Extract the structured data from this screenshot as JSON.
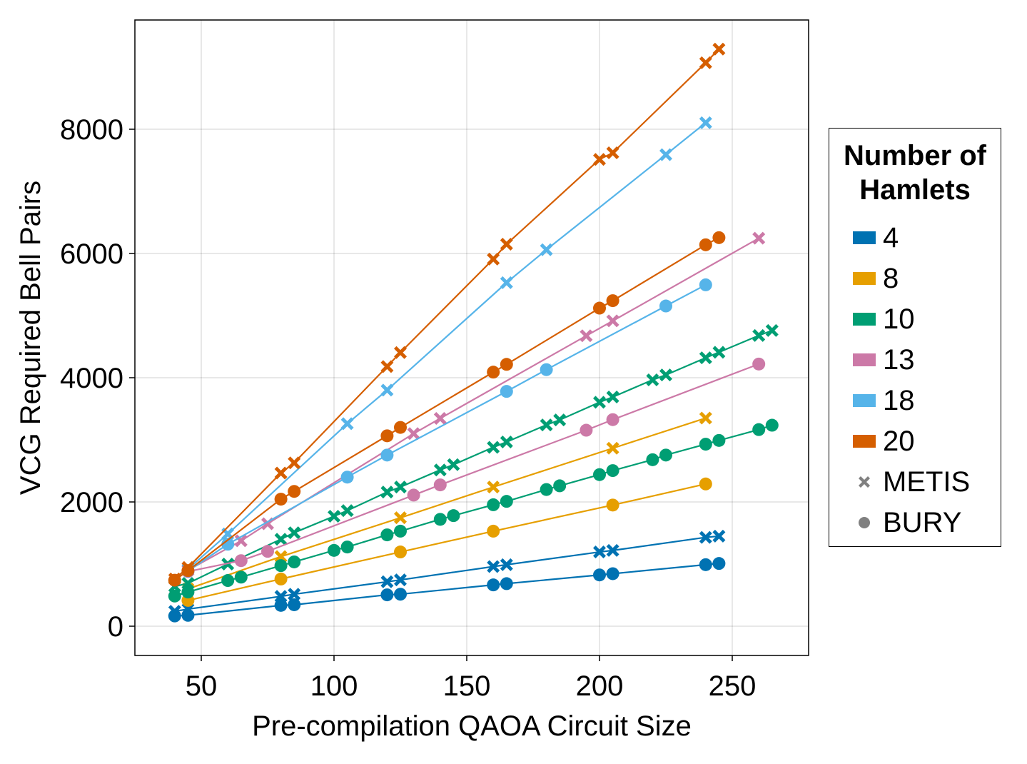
{
  "chart_data": {
    "type": "line",
    "title": "",
    "xlabel": "Pre-compilation QAOA Circuit Size",
    "ylabel": "VCG Required Bell Pairs",
    "xlim": [
      25,
      280
    ],
    "ylim": [
      -500,
      9800
    ],
    "xticks": [
      50,
      100,
      150,
      200,
      250
    ],
    "yticks": [
      0,
      2000,
      4000,
      6000,
      8000
    ],
    "xtick_labels": [
      "50",
      "100",
      "150",
      "200",
      "250"
    ],
    "ytick_labels": [
      "0",
      "2000",
      "4000",
      "6000",
      "8000"
    ],
    "grid": true,
    "legend": {
      "title": "Number of Hamlets",
      "title_lines": [
        "Number of",
        "Hamlets"
      ],
      "placement": "right",
      "color_entries": [
        {
          "label": "4",
          "color": "#0072b2"
        },
        {
          "label": "8",
          "color": "#e69f00"
        },
        {
          "label": "10",
          "color": "#009e73"
        },
        {
          "label": "13",
          "color": "#cc79a7"
        },
        {
          "label": "18",
          "color": "#56b4e9"
        },
        {
          "label": "20",
          "color": "#d55e00"
        }
      ],
      "marker_entries": [
        {
          "label": "METIS",
          "marker": "x-icon"
        },
        {
          "label": "BURY",
          "marker": "circle-icon"
        }
      ],
      "marker_color": "#808080"
    },
    "series": [
      {
        "name": "4 METIS",
        "hamlets": "4",
        "method": "METIS",
        "color": "#0072b2",
        "marker": "x",
        "x": [
          40,
          45,
          80,
          85,
          120,
          125,
          160,
          165,
          200,
          205,
          240,
          245
        ],
        "y": [
          240,
          275,
          480,
          515,
          715,
          745,
          960,
          990,
          1195,
          1220,
          1430,
          1450
        ]
      },
      {
        "name": "4 BURY",
        "hamlets": "4",
        "method": "BURY",
        "color": "#0072b2",
        "marker": "circle",
        "x": [
          40,
          45,
          80,
          85,
          120,
          125,
          160,
          165,
          200,
          205,
          240,
          245
        ],
        "y": [
          165,
          175,
          335,
          345,
          505,
          515,
          665,
          685,
          825,
          845,
          990,
          1010
        ]
      },
      {
        "name": "8 METIS",
        "hamlets": "8",
        "method": "METIS",
        "color": "#e69f00",
        "marker": "x",
        "x": [
          45,
          80,
          125,
          160,
          205,
          240
        ],
        "y": [
          600,
          1120,
          1745,
          2240,
          2865,
          3350
        ]
      },
      {
        "name": "8 BURY",
        "hamlets": "8",
        "method": "BURY",
        "color": "#e69f00",
        "marker": "circle",
        "x": [
          45,
          80,
          125,
          160,
          205,
          240
        ],
        "y": [
          415,
          760,
          1195,
          1530,
          1950,
          2290
        ]
      },
      {
        "name": "10 METIS",
        "hamlets": "10",
        "method": "METIS",
        "color": "#009e73",
        "marker": "x",
        "x": [
          40,
          45,
          60,
          80,
          85,
          100,
          105,
          120,
          125,
          140,
          145,
          160,
          165,
          180,
          185,
          200,
          205,
          220,
          225,
          240,
          245,
          260,
          265
        ],
        "y": [
          640,
          690,
          1000,
          1400,
          1505,
          1770,
          1860,
          2160,
          2240,
          2515,
          2600,
          2880,
          2965,
          3240,
          3320,
          3605,
          3690,
          3965,
          4045,
          4320,
          4410,
          4680,
          4760
        ]
      },
      {
        "name": "10 BURY",
        "hamlets": "10",
        "method": "BURY",
        "color": "#009e73",
        "marker": "circle",
        "x": [
          40,
          45,
          60,
          65,
          80,
          85,
          100,
          105,
          120,
          125,
          140,
          145,
          160,
          165,
          180,
          185,
          200,
          205,
          220,
          225,
          240,
          245,
          260,
          265
        ],
        "y": [
          485,
          550,
          735,
          790,
          975,
          1035,
          1220,
          1275,
          1470,
          1530,
          1720,
          1780,
          1955,
          2010,
          2200,
          2260,
          2440,
          2505,
          2680,
          2755,
          2930,
          2990,
          3165,
          3235
        ]
      },
      {
        "name": "13 METIS",
        "hamlets": "13",
        "method": "METIS",
        "color": "#cc79a7",
        "marker": "x",
        "x": [
          45,
          65,
          75,
          130,
          140,
          195,
          205,
          260
        ],
        "y": [
          900,
          1375,
          1650,
          3100,
          3345,
          4675,
          4915,
          6245
        ]
      },
      {
        "name": "13 BURY",
        "hamlets": "13",
        "method": "BURY",
        "color": "#cc79a7",
        "marker": "circle",
        "x": [
          45,
          65,
          75,
          130,
          140,
          195,
          205,
          260
        ],
        "y": [
          880,
          1055,
          1205,
          2110,
          2275,
          3155,
          3325,
          4220
        ]
      },
      {
        "name": "18 METIS",
        "hamlets": "18",
        "method": "METIS",
        "color": "#56b4e9",
        "marker": "x",
        "x": [
          45,
          60,
          105,
          120,
          165,
          180,
          225,
          240
        ],
        "y": [
          920,
          1485,
          3260,
          3800,
          5530,
          6060,
          7590,
          8105
        ]
      },
      {
        "name": "18 BURY",
        "hamlets": "18",
        "method": "BURY",
        "color": "#56b4e9",
        "marker": "circle",
        "x": [
          45,
          60,
          105,
          120,
          165,
          180,
          225,
          240
        ],
        "y": [
          890,
          1320,
          2400,
          2755,
          3780,
          4130,
          5155,
          5495
        ]
      },
      {
        "name": "20 METIS",
        "hamlets": "20",
        "method": "METIS",
        "color": "#d55e00",
        "marker": "x",
        "x": [
          40,
          45,
          80,
          85,
          120,
          125,
          160,
          165,
          200,
          205,
          240,
          245
        ],
        "y": [
          760,
          945,
          2465,
          2630,
          4180,
          4405,
          5910,
          6150,
          7515,
          7620,
          9070,
          9290
        ]
      },
      {
        "name": "20 BURY",
        "hamlets": "20",
        "method": "BURY",
        "color": "#d55e00",
        "marker": "circle",
        "x": [
          40,
          45,
          80,
          85,
          120,
          125,
          160,
          165,
          200,
          205,
          240,
          245
        ],
        "y": [
          740,
          895,
          2045,
          2170,
          3065,
          3200,
          4090,
          4215,
          5120,
          5240,
          6140,
          6255
        ]
      }
    ]
  }
}
